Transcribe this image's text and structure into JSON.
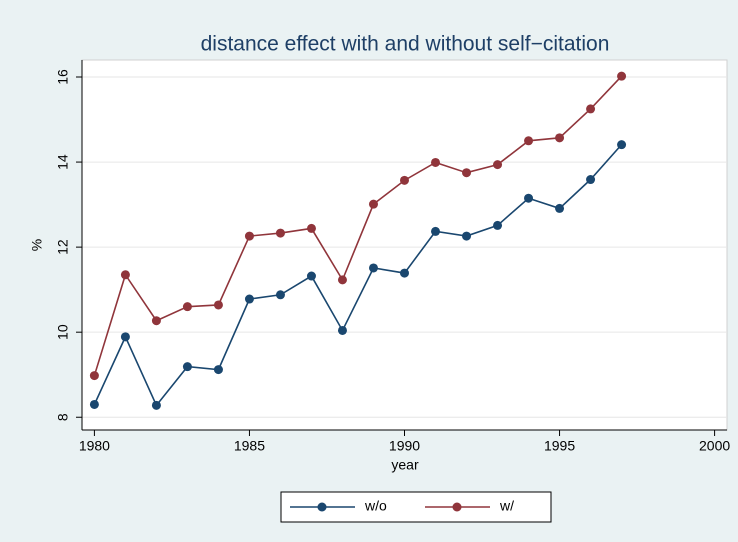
{
  "chart_data": {
    "type": "line",
    "title": "distance effect with and without self−citation",
    "x_label": "year",
    "y_label": "%",
    "x": [
      1980,
      1981,
      1982,
      1983,
      1984,
      1985,
      1986,
      1987,
      1988,
      1989,
      1990,
      1991,
      1992,
      1993,
      1994,
      1995,
      1996,
      1997
    ],
    "series": [
      {
        "name": "w/o",
        "color": "#1a476f",
        "values": [
          8.3,
          9.89,
          8.28,
          9.19,
          9.12,
          10.78,
          10.88,
          11.32,
          10.04,
          11.51,
          11.39,
          12.37,
          12.26,
          12.51,
          13.15,
          12.91,
          13.59,
          14.41
        ]
      },
      {
        "name": "w/",
        "color": "#90353b",
        "values": [
          8.98,
          11.35,
          10.27,
          10.6,
          10.64,
          12.26,
          12.33,
          12.44,
          11.23,
          13.01,
          13.57,
          13.99,
          13.75,
          13.94,
          14.5,
          14.57,
          15.25,
          16.02
        ]
      }
    ],
    "xlim": [
      1979.6,
      2000.4
    ],
    "xticks": [
      1980,
      1985,
      1990,
      1995,
      2000
    ],
    "ylim": [
      7.7,
      16.4
    ],
    "yticks": [
      8,
      10,
      12,
      14,
      16
    ],
    "grid": true,
    "legend": "bottom"
  }
}
